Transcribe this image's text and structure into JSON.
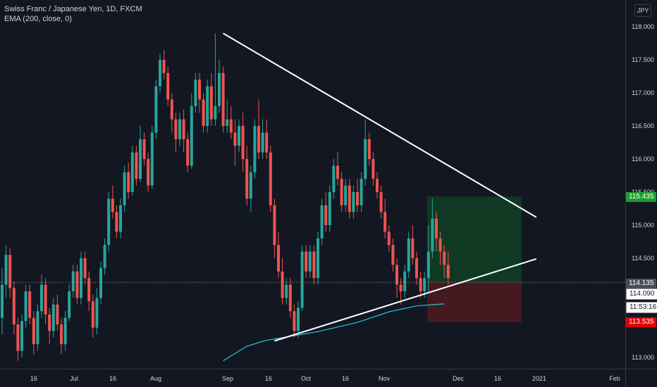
{
  "header": {
    "symbol": "Swiss Franc / Japanese Yen, 1D, FXCM",
    "indicator": "EMA (200, close, 0)"
  },
  "currency_button": "JPY",
  "price_labels": {
    "target": "115.435",
    "last": "114.135",
    "prev_close": "114.090",
    "countdown": "11:53:16",
    "stop": "113.535"
  },
  "colors": {
    "background": "#131722",
    "up": "#26a69a",
    "down": "#ef5350",
    "ema": "#26c6da",
    "trendline": "#ffffff",
    "target_zone": "#0f3d22",
    "stop_zone": "#4a1a1f",
    "target_label": "#1b9e30",
    "stop_label": "#e00000"
  },
  "chart_data": {
    "type": "candlestick",
    "title": "Swiss Franc / Japanese Yen, 1D, FXCM",
    "y_axis_ticks": [
      "118.000",
      "117.500",
      "117.000",
      "116.500",
      "116.000",
      "115.500",
      "115.000",
      "114.500",
      "114.000",
      "113.500",
      "113.000"
    ],
    "ylim": [
      112.95,
      118.2
    ],
    "x_axis_ticks": [
      "16",
      "Jul",
      "16",
      "Aug",
      "Sep",
      "16",
      "Oct",
      "16",
      "Nov",
      "Dec",
      "16",
      "2021",
      "Feb"
    ],
    "last_price": 114.135,
    "position": {
      "entry": 114.135,
      "target": 115.435,
      "stop": 113.535
    },
    "trendlines": [
      {
        "name": "descending resistance",
        "from": [
          56,
          117.9
        ],
        "to": [
          133,
          115.12
        ]
      },
      {
        "name": "ascending support",
        "from": [
          69,
          113.25
        ],
        "to": [
          133,
          114.49
        ]
      }
    ],
    "ema200_points": [
      [
        56,
        112.95
      ],
      [
        62,
        113.17
      ],
      [
        67,
        113.26
      ],
      [
        72,
        113.31
      ],
      [
        80,
        113.39
      ],
      [
        90,
        113.53
      ],
      [
        98,
        113.69
      ],
      [
        105,
        113.78
      ],
      [
        112,
        113.81
      ]
    ],
    "candles": [
      [
        113.6,
        114.1,
        114.35,
        113.35
      ],
      [
        114.1,
        114.55,
        114.7,
        113.9
      ],
      [
        114.55,
        114.05,
        114.65,
        113.9
      ],
      [
        114.05,
        113.5,
        114.15,
        113.35
      ],
      [
        113.5,
        113.1,
        113.6,
        112.95
      ],
      [
        113.1,
        113.55,
        113.65,
        113.0
      ],
      [
        113.55,
        114.0,
        114.1,
        113.45
      ],
      [
        114.0,
        113.6,
        114.1,
        113.5
      ],
      [
        113.6,
        113.2,
        113.7,
        113.05
      ],
      [
        113.2,
        113.7,
        113.8,
        113.1
      ],
      [
        113.7,
        114.1,
        114.25,
        113.6
      ],
      [
        114.1,
        113.65,
        114.2,
        113.5
      ],
      [
        113.65,
        113.4,
        113.75,
        113.2
      ],
      [
        113.4,
        113.8,
        113.9,
        113.3
      ],
      [
        113.8,
        113.5,
        113.95,
        113.4
      ],
      [
        113.5,
        113.2,
        113.6,
        113.05
      ],
      [
        113.2,
        113.6,
        113.7,
        113.1
      ],
      [
        113.6,
        114.0,
        114.1,
        113.55
      ],
      [
        114.0,
        114.3,
        114.4,
        113.9
      ],
      [
        114.3,
        113.9,
        114.4,
        113.8
      ],
      [
        113.9,
        114.5,
        114.6,
        113.8
      ],
      [
        114.5,
        114.2,
        114.6,
        114.1
      ],
      [
        114.2,
        113.85,
        114.3,
        113.7
      ],
      [
        113.85,
        113.45,
        113.95,
        113.3
      ],
      [
        113.45,
        113.9,
        114.05,
        113.35
      ],
      [
        113.9,
        114.35,
        114.45,
        113.8
      ],
      [
        114.35,
        114.7,
        114.8,
        114.25
      ],
      [
        114.7,
        115.4,
        115.5,
        114.6
      ],
      [
        115.4,
        115.2,
        115.6,
        115.1
      ],
      [
        115.2,
        114.9,
        115.3,
        114.8
      ],
      [
        114.9,
        115.3,
        115.4,
        114.8
      ],
      [
        115.3,
        115.8,
        115.9,
        115.2
      ],
      [
        115.8,
        115.5,
        115.95,
        115.4
      ],
      [
        115.5,
        116.1,
        116.2,
        115.45
      ],
      [
        116.1,
        115.7,
        116.2,
        115.6
      ],
      [
        115.7,
        116.3,
        116.5,
        115.65
      ],
      [
        116.3,
        116.0,
        116.4,
        115.9
      ],
      [
        116.0,
        115.6,
        116.1,
        115.5
      ],
      [
        115.6,
        116.4,
        116.5,
        115.55
      ],
      [
        116.4,
        117.1,
        117.2,
        116.3
      ],
      [
        117.1,
        117.5,
        117.6,
        117.0
      ],
      [
        117.5,
        117.3,
        117.65,
        117.2
      ],
      [
        117.3,
        116.9,
        117.4,
        116.8
      ],
      [
        116.9,
        116.6,
        117.0,
        116.4
      ],
      [
        116.6,
        116.3,
        116.7,
        116.1
      ],
      [
        116.3,
        116.6,
        116.7,
        116.2
      ],
      [
        116.6,
        116.3,
        116.75,
        116.1
      ],
      [
        116.3,
        115.9,
        116.4,
        115.8
      ],
      [
        115.9,
        116.8,
        117.0,
        115.85
      ],
      [
        116.8,
        117.2,
        117.3,
        116.7
      ],
      [
        117.2,
        116.9,
        117.3,
        116.7
      ],
      [
        116.9,
        116.5,
        117.0,
        116.4
      ],
      [
        116.5,
        117.1,
        117.2,
        116.4
      ],
      [
        117.1,
        116.6,
        117.3,
        116.5
      ],
      [
        116.6,
        116.8,
        117.9,
        116.5
      ],
      [
        116.8,
        117.3,
        117.5,
        116.7
      ],
      [
        117.3,
        116.5,
        117.4,
        116.4
      ],
      [
        116.5,
        116.6,
        116.9,
        116.4
      ],
      [
        116.6,
        116.4,
        116.8,
        116.3
      ],
      [
        116.4,
        116.2,
        116.6,
        115.9
      ],
      [
        116.2,
        116.5,
        116.6,
        116.1
      ],
      [
        116.5,
        116.0,
        116.7,
        115.8
      ],
      [
        116.0,
        115.4,
        116.2,
        115.3
      ],
      [
        115.4,
        115.8,
        115.9,
        115.2
      ],
      [
        115.8,
        116.5,
        116.6,
        115.7
      ],
      [
        116.5,
        116.1,
        116.9,
        116.0
      ],
      [
        116.1,
        116.4,
        116.6,
        116.0
      ],
      [
        116.4,
        116.1,
        116.6,
        116.0
      ],
      [
        116.1,
        115.3,
        116.2,
        115.2
      ],
      [
        115.3,
        114.7,
        115.4,
        114.5
      ],
      [
        114.7,
        114.3,
        114.9,
        114.2
      ],
      [
        114.3,
        113.9,
        114.5,
        113.8
      ],
      [
        113.9,
        114.1,
        114.2,
        113.8
      ],
      [
        114.1,
        113.7,
        114.2,
        113.6
      ],
      [
        113.7,
        113.4,
        113.8,
        113.3
      ],
      [
        113.4,
        113.75,
        113.85,
        113.3
      ],
      [
        113.75,
        114.6,
        114.7,
        113.7
      ],
      [
        114.6,
        114.3,
        114.7,
        114.2
      ],
      [
        114.3,
        114.6,
        114.7,
        114.2
      ],
      [
        114.6,
        114.2,
        114.7,
        114.1
      ],
      [
        114.2,
        114.8,
        114.9,
        114.1
      ],
      [
        114.8,
        115.3,
        115.4,
        114.7
      ],
      [
        115.3,
        115.0,
        115.5,
        114.9
      ],
      [
        115.0,
        115.5,
        115.6,
        114.9
      ],
      [
        115.5,
        115.9,
        116.0,
        115.4
      ],
      [
        115.9,
        115.7,
        116.1,
        115.6
      ],
      [
        115.7,
        115.3,
        115.8,
        115.2
      ],
      [
        115.3,
        115.6,
        115.7,
        115.2
      ],
      [
        115.6,
        115.2,
        115.7,
        115.1
      ],
      [
        115.2,
        115.5,
        115.6,
        115.1
      ],
      [
        115.5,
        115.3,
        115.7,
        115.2
      ],
      [
        115.3,
        115.7,
        115.8,
        115.2
      ],
      [
        115.7,
        116.3,
        116.6,
        115.6
      ],
      [
        116.3,
        116.0,
        116.4,
        115.9
      ],
      [
        116.0,
        115.7,
        116.1,
        115.6
      ],
      [
        115.7,
        115.5,
        115.8,
        115.4
      ],
      [
        115.5,
        115.2,
        115.6,
        115.1
      ],
      [
        115.2,
        114.9,
        115.4,
        114.8
      ],
      [
        114.9,
        114.7,
        115.0,
        114.6
      ],
      [
        114.7,
        114.4,
        114.8,
        114.3
      ],
      [
        114.4,
        114.1,
        114.5,
        113.9
      ],
      [
        114.1,
        114.0,
        114.2,
        113.8
      ],
      [
        114.0,
        114.3,
        114.4,
        113.9
      ],
      [
        114.3,
        114.8,
        114.9,
        114.2
      ],
      [
        114.8,
        114.5,
        115.0,
        114.4
      ],
      [
        114.5,
        114.2,
        114.6,
        114.1
      ],
      [
        114.2,
        114.0,
        114.3,
        113.9
      ],
      [
        114.0,
        114.2,
        114.3,
        113.9
      ],
      [
        114.2,
        114.6,
        115.0,
        114.0
      ],
      [
        114.6,
        115.1,
        115.4,
        114.5
      ],
      [
        115.1,
        114.8,
        115.2,
        114.6
      ],
      [
        114.8,
        114.6,
        114.9,
        114.4
      ],
      [
        114.6,
        114.4,
        114.7,
        114.2
      ],
      [
        114.4,
        114.2,
        114.6,
        114.1
      ]
    ]
  }
}
